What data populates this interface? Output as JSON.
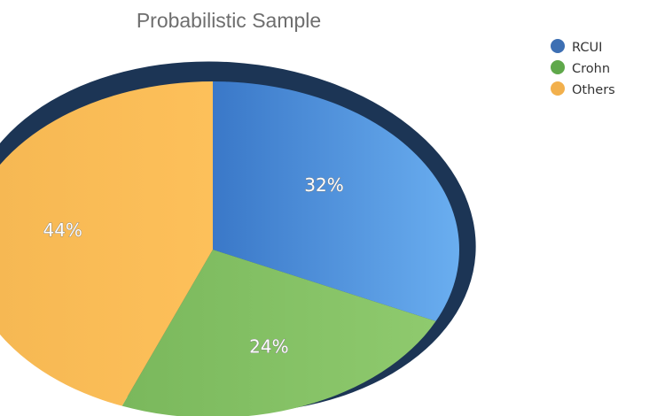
{
  "chart_data": {
    "type": "pie",
    "title": "Probabilistic Sample",
    "categories": [
      "RCUI",
      "Crohn",
      "Others"
    ],
    "values": [
      32,
      24,
      44
    ],
    "labels": [
      "32%",
      "24%",
      "44%"
    ],
    "colors": [
      "#4f8fdd",
      "#86c067",
      "#f7b955"
    ],
    "legend_markers": [
      "#3d6fb3",
      "#5fa84a",
      "#f2b04c"
    ],
    "legend_position": "top-right",
    "start_angle_deg": 0,
    "direction": "clockwise"
  }
}
